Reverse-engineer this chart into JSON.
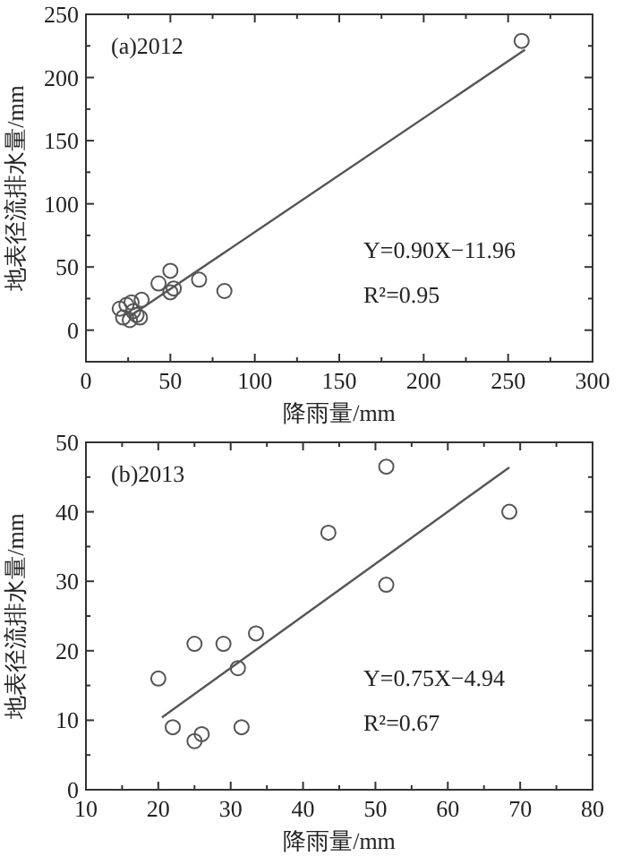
{
  "chart_data": [
    {
      "type": "scatter",
      "xlabel": "降雨量/mm",
      "ylabel": "地表径流排水量/mm",
      "grid": false,
      "xlim": [
        0,
        300
      ],
      "ylim": [
        -25,
        250
      ],
      "xticks": [
        0,
        {
          "value": 25,
          "label": null
        },
        50,
        {
          "value": 75,
          "label": null
        },
        100,
        {
          "value": 125,
          "label": null
        },
        150,
        {
          "value": 175,
          "label": null
        },
        200,
        {
          "value": 225,
          "label": null
        },
        250,
        {
          "value": 275,
          "label": null
        },
        300
      ],
      "yticks": [
        0,
        {
          "value": 25,
          "label": null
        },
        50,
        {
          "value": 75,
          "label": null
        },
        100,
        {
          "value": 125,
          "label": null
        },
        150,
        {
          "value": 175,
          "label": null
        },
        200,
        {
          "value": 225,
          "label": null
        },
        250
      ],
      "annotations": [
        "(a)2012",
        "Y=0.90X−11.96",
        "R²=0.95"
      ],
      "series": [
        {
          "marker": "circle",
          "color": "#555555",
          "x": [
            20,
            22,
            24,
            26,
            27,
            28,
            30,
            32,
            33,
            43,
            50,
            50,
            52,
            67,
            82,
            258
          ],
          "values": [
            17,
            10,
            20,
            8,
            22,
            15,
            12,
            10,
            24,
            37,
            47,
            30,
            33,
            40,
            31,
            229
          ]
        },
        {
          "type": "line",
          "color": "#555555",
          "x": [
            25,
            260
          ],
          "values": [
            10,
            222
          ]
        }
      ]
    },
    {
      "type": "scatter",
      "xlabel": "降雨量/mm",
      "ylabel": "地表径流排水量/mm",
      "grid": false,
      "xlim": [
        10,
        80
      ],
      "ylim": [
        0,
        50
      ],
      "xticks": [
        10,
        {
          "value": 15,
          "label": null
        },
        20,
        {
          "value": 25,
          "label": null
        },
        30,
        {
          "value": 35,
          "label": null
        },
        40,
        {
          "value": 45,
          "label": null
        },
        50,
        {
          "value": 55,
          "label": null
        },
        60,
        {
          "value": 65,
          "label": null
        },
        70,
        {
          "value": 75,
          "label": null
        },
        80
      ],
      "yticks": [
        0,
        {
          "value": 5,
          "label": null
        },
        10,
        {
          "value": 15,
          "label": null
        },
        20,
        {
          "value": 25,
          "label": null
        },
        30,
        {
          "value": 35,
          "label": null
        },
        40,
        {
          "value": 45,
          "label": null
        },
        50
      ],
      "annotations": [
        "(b)2013",
        "Y=0.75X−4.94",
        "R²=0.67"
      ],
      "series": [
        {
          "marker": "circle",
          "color": "#555555",
          "x": [
            20,
            22,
            25,
            25,
            26,
            29,
            31,
            31.5,
            33.5,
            43.5,
            51.5,
            51.5,
            68.5
          ],
          "values": [
            16,
            9,
            21,
            7,
            8,
            21,
            17.5,
            9,
            22.5,
            37,
            46.5,
            29.5,
            40
          ]
        },
        {
          "type": "line",
          "color": "#555555",
          "x": [
            20.5,
            68.5
          ],
          "values": [
            10.4,
            46.4
          ]
        }
      ]
    }
  ]
}
